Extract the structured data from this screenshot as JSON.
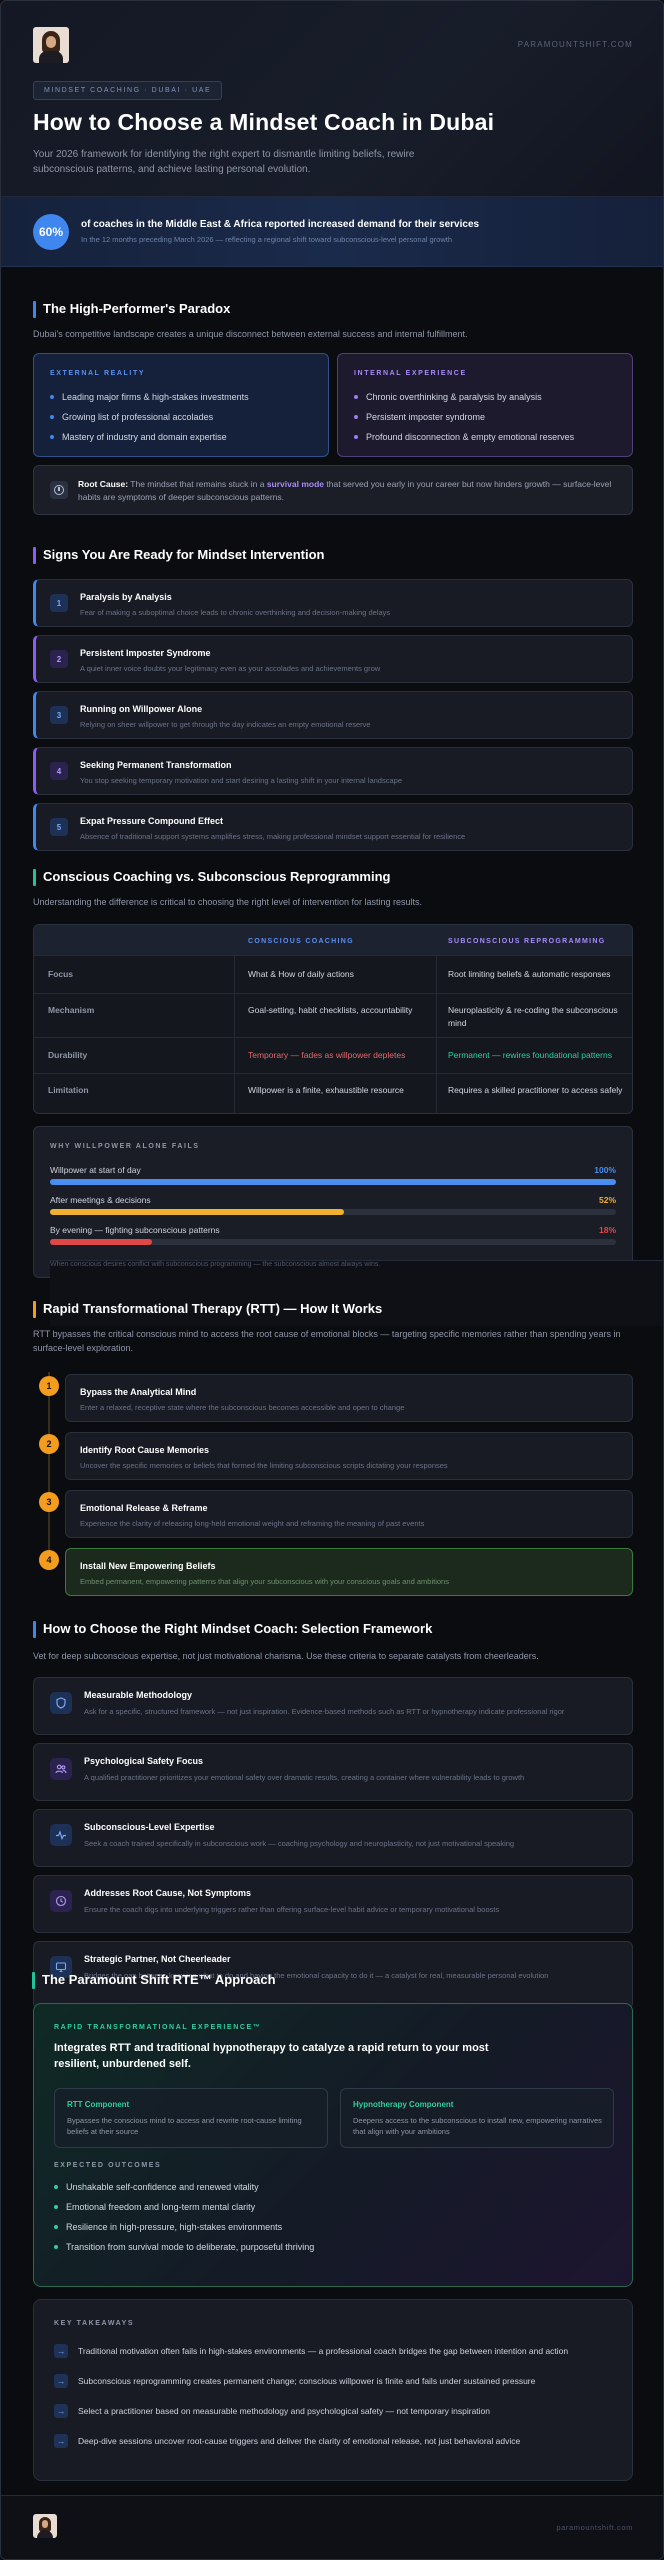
{
  "header": {
    "site": "PARAMOUNTSHIFT.COM",
    "breadcrumb": "MINDSET COACHING · DUBAI · UAE",
    "title": "How to Choose a Mindset Coach in Dubai",
    "subtitle": "Your 2026 framework for identifying the right expert to dismantle limiting beliefs, rewire subconscious patterns, and achieve lasting personal evolution."
  },
  "stat": {
    "value": "60%",
    "headline": "of coaches in the Middle East & Africa reported increased demand for their services",
    "detail": "In the 12 months preceding March 2026 — reflecting a regional shift toward subconscious-level personal growth"
  },
  "paradox": {
    "title": "The High-Performer's Paradox",
    "intro": "Dubai's competitive landscape creates a unique disconnect between external success and internal fulfillment.",
    "external": {
      "label": "EXTERNAL REALITY",
      "items": [
        "Leading major firms & high-stakes investments",
        "Growing list of professional accolades",
        "Mastery of industry and domain expertise"
      ]
    },
    "internal": {
      "label": "INTERNAL EXPERIENCE",
      "items": [
        "Chronic overthinking & paralysis by analysis",
        "Persistent imposter syndrome",
        "Profound disconnection & empty emotional reserves"
      ]
    },
    "root_cause": {
      "label": "Root Cause:",
      "pre": "The mindset that remains stuck in a",
      "highlight": "survival mode",
      "post": "that served you early in your career but now hinders growth — surface-level habits are symptoms of deeper subconscious patterns."
    }
  },
  "signs": {
    "title": "Signs You Are Ready for Mindset Intervention",
    "items": [
      {
        "num": "1",
        "title": "Paralysis by Analysis",
        "desc": "Fear of making a suboptimal choice leads to chronic overthinking and decision-making delays"
      },
      {
        "num": "2",
        "title": "Persistent Imposter Syndrome",
        "desc": "A quiet inner voice doubts your legitimacy even as your accolades and achievements grow"
      },
      {
        "num": "3",
        "title": "Running on Willpower Alone",
        "desc": "Relying on sheer willpower to get through the day indicates an empty emotional reserve"
      },
      {
        "num": "4",
        "title": "Seeking Permanent Transformation",
        "desc": "You stop seeking temporary motivation and start desiring a lasting shift in your internal landscape"
      },
      {
        "num": "5",
        "title": "Expat Pressure Compound Effect",
        "desc": "Absence of traditional support systems amplifies stress, making professional mindset support essential for resilience"
      }
    ]
  },
  "compare": {
    "title": "Conscious Coaching vs. Subconscious Reprogramming",
    "intro": "Understanding the difference is critical to choosing the right level of intervention for lasting results.",
    "headers": [
      "",
      "CONSCIOUS COACHING",
      "SUBCONSCIOUS REPROGRAMMING"
    ],
    "rows": [
      {
        "label": "Focus",
        "a": "What & How of daily actions",
        "b": "Root limiting beliefs & automatic responses"
      },
      {
        "label": "Mechanism",
        "a": "Goal-setting, habit checklists, accountability",
        "b": "Neuroplasticity & re-coding the subconscious mind"
      },
      {
        "label": "Durability",
        "a": "Temporary — fades as willpower depletes",
        "b": "Permanent — rewires foundational patterns"
      },
      {
        "label": "Limitation",
        "a": "Willpower is a finite, exhaustible resource",
        "b": "Requires a skilled practitioner to access safely"
      }
    ],
    "colors": {
      "conscious_header": "#5b8ff0",
      "subconscious_header": "#a78bfa",
      "temporary": "#e36a6a",
      "permanent": "#2fcf9d"
    }
  },
  "willpower": {
    "title": "WHY WILLPOWER ALONE FAILS",
    "bars": [
      {
        "label": "Willpower at start of day",
        "value": "100%",
        "fraction": 1.0,
        "color": "#4a8df0"
      },
      {
        "label": "After meetings & decisions",
        "value": "52%",
        "fraction": 0.52,
        "color": "#f0b030"
      },
      {
        "label": "By evening — fighting subconscious patterns",
        "value": "18%",
        "fraction": 0.18,
        "color": "#e04848"
      }
    ],
    "footnote": "When conscious desires conflict with subconscious programming — the subconscious almost always wins."
  },
  "rtt": {
    "title": "Rapid Transformational Therapy (RTT) — How It Works",
    "intro": "RTT bypasses the critical conscious mind to access the root cause of emotional blocks — targeting specific memories rather than spending years in surface-level exploration.",
    "steps": [
      {
        "num": "1",
        "title": "Bypass the Analytical Mind",
        "desc": "Enter a relaxed, receptive state where the subconscious becomes accessible and open to change"
      },
      {
        "num": "2",
        "title": "Identify Root Cause Memories",
        "desc": "Uncover the specific memories or beliefs that formed the limiting subconscious scripts dictating your responses"
      },
      {
        "num": "3",
        "title": "Emotional Release & Reframe",
        "desc": "Experience the clarity of releasing long-held emotional weight and reframing the meaning of past events"
      },
      {
        "num": "4",
        "title": "Install New Empowering Beliefs",
        "desc": "Embed permanent, empowering patterns that align your subconscious with your conscious goals and ambitions"
      }
    ]
  },
  "criteria": {
    "title": "How to Choose the Right Mindset Coach: Selection Framework",
    "intro": "Vet for deep subconscious expertise, not just motivational charisma. Use these criteria to separate catalysts from cheerleaders.",
    "items": [
      {
        "icon": "shield-icon",
        "title": "Measurable Methodology",
        "desc": "Ask for a specific, structured framework — not just inspiration. Evidence-based methods such as RTT or hypnotherapy indicate professional rigor"
      },
      {
        "icon": "people-icon",
        "title": "Psychological Safety Focus",
        "desc": "A qualified practitioner prioritizes your emotional safety over dramatic results, creating a container where vulnerability leads to growth"
      },
      {
        "icon": "pulse-icon",
        "title": "Subconscious-Level Expertise",
        "desc": "Seek a coach trained specifically in subconscious work — coaching psychology and neuroplasticity, not just motivational speaking"
      },
      {
        "icon": "clock-icon",
        "title": "Addresses Root Cause, Not Symptoms",
        "desc": "Ensure the coach digs into underlying triggers rather than offering surface-level habit advice or temporary motivational boosts"
      },
      {
        "icon": "monitor-icon",
        "title": "Strategic Partner, Not Cheerleader",
        "desc": "Bridges the gap between knowing what to do and having the emotional capacity to do it — a catalyst for real, measurable personal evolution"
      }
    ]
  },
  "rte": {
    "section_title": "The Paramount Shift RTE™ Approach",
    "kicker": "RAPID TRANSFORMATIONAL EXPERIENCE™",
    "headline": "Integrates RTT and traditional hypnotherapy to catalyze a rapid return to your most resilient, unburdened self.",
    "rtt_title": "RTT Component",
    "rtt_desc": "Bypasses the conscious mind to access and rewrite root-cause limiting beliefs at their source",
    "hypno_title": "Hypnotherapy Component",
    "hypno_desc": "Deepens access to the subconscious to install new, empowering narratives that align with your ambitions",
    "outcomes_label": "EXPECTED OUTCOMES",
    "outcomes": [
      "Unshakable self-confidence and renewed vitality",
      "Emotional freedom and long-term mental clarity",
      "Resilience in high-pressure, high-stakes environments",
      "Transition from survival mode to deliberate, purposeful thriving"
    ]
  },
  "takeaways": {
    "label": "KEY TAKEAWAYS",
    "items": [
      "Traditional motivation often fails in high-stakes environments — a professional coach bridges the gap between intention and action",
      "Subconscious reprogramming creates permanent change; conscious willpower is finite and fails under sustained pressure",
      "Select a practitioner based on measurable methodology and psychological safety — not temporary inspiration",
      "Deep-dive sessions uncover root-cause triggers and deliver the clarity of emotional release, not just behavioral advice"
    ]
  },
  "footer": {
    "site": "paramountshift.com"
  }
}
